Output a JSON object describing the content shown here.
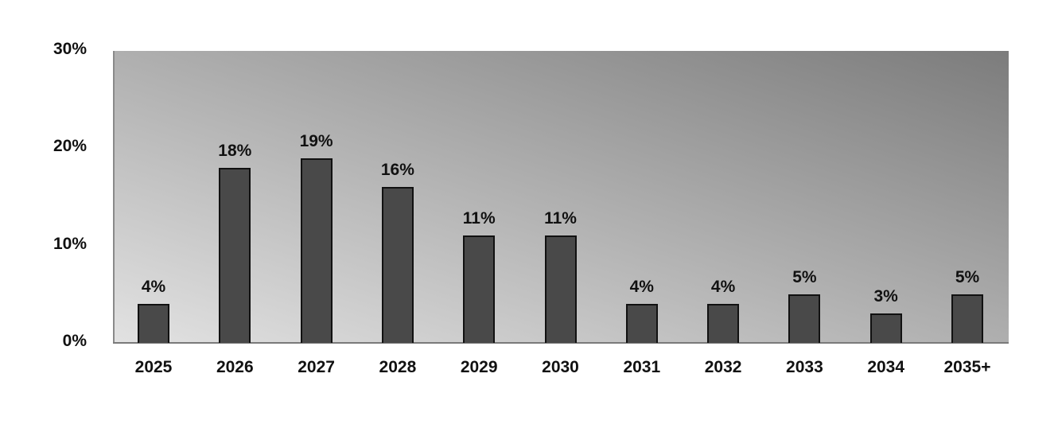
{
  "chart_data": {
    "type": "bar",
    "title": "",
    "xlabel": "",
    "ylabel": "",
    "categories": [
      "2025",
      "2026",
      "2027",
      "2028",
      "2029",
      "2030",
      "2031",
      "2032",
      "2033",
      "2034",
      "2035+"
    ],
    "values": [
      4,
      18,
      19,
      16,
      11,
      11,
      4,
      4,
      5,
      3,
      5
    ],
    "value_labels": [
      "4%",
      "18%",
      "19%",
      "16%",
      "11%",
      "11%",
      "4%",
      "4%",
      "5%",
      "3%",
      "5%"
    ],
    "ylim": [
      0,
      30
    ],
    "yticks": [
      0,
      10,
      20,
      30
    ],
    "ytick_labels": [
      "0%",
      "10%",
      "20%",
      "30%"
    ],
    "grid": false,
    "legend": null,
    "colors": {
      "bar": "#494949",
      "bar_border": "#111111",
      "background_gradient": [
        "#e2e2e2",
        "#7c7c7c"
      ]
    }
  }
}
